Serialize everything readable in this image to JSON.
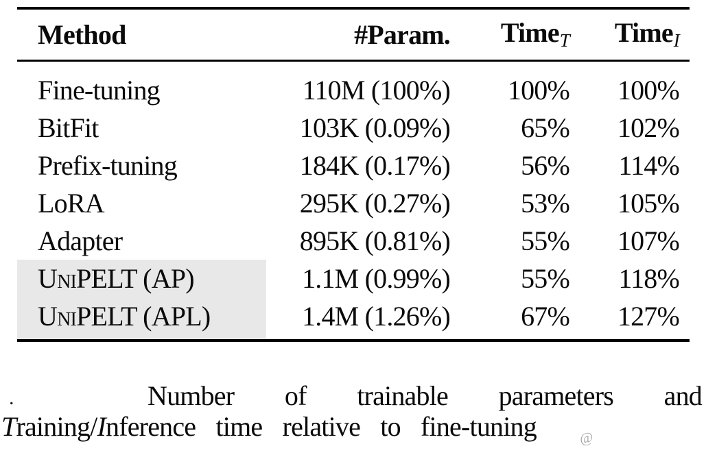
{
  "table": {
    "headers": {
      "method": "Method",
      "param": "#Param.",
      "time_t_base": "Time",
      "time_t_sub": "T",
      "time_i_base": "Time",
      "time_i_sub": "I"
    },
    "rows": [
      {
        "method": "Fine-tuning",
        "param": "110M (100%)",
        "time_t": "100%",
        "time_i": "100%",
        "highlighted": false
      },
      {
        "method": "BitFit",
        "param": "103K (0.09%)",
        "time_t": "65%",
        "time_i": "102%",
        "highlighted": false
      },
      {
        "method": "Prefix-tuning",
        "param": "184K (0.17%)",
        "time_t": "56%",
        "time_i": "114%",
        "highlighted": false
      },
      {
        "method": "LoRA",
        "param": "295K (0.27%)",
        "time_t": "53%",
        "time_i": "105%",
        "highlighted": false
      },
      {
        "method": "Adapter",
        "param": "895K (0.81%)",
        "time_t": "55%",
        "time_i": "107%",
        "highlighted": false
      },
      {
        "method": "UniPELT (AP)",
        "param": "1.1M (0.99%)",
        "time_t": "55%",
        "time_i": "118%",
        "highlighted": true
      },
      {
        "method": "UniPELT (APL)",
        "param": "1.4M (1.26%)",
        "time_t": "67%",
        "time_i": "127%",
        "highlighted": true
      }
    ],
    "highlight_color": "#e8e8e8",
    "text_color": "#0b0b0b"
  },
  "caption": {
    "orphan_dot": ".",
    "line1_words": [
      "Number",
      "of",
      "trainable",
      "parameters",
      "and"
    ],
    "line2": {
      "t_italic": "T",
      "t_rest": "raining/",
      "i_italic": "I",
      "i_rest": "nference",
      "rest": " time relative to fine-tuning"
    }
  },
  "watermark_glyph": "@"
}
